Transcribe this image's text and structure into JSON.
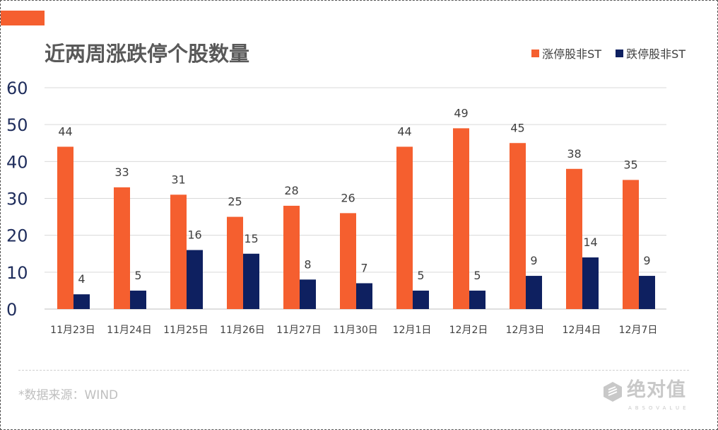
{
  "chart_data": {
    "type": "bar",
    "title": "近两周涨跌停个股数量",
    "categories": [
      "11月23日",
      "11月24日",
      "11月25日",
      "11月26日",
      "11月27日",
      "11月30日",
      "12月1日",
      "12月2日",
      "12月3日",
      "12月4日",
      "12月7日"
    ],
    "series": [
      {
        "name": "涨停股非ST",
        "color": "#F55F2F",
        "values": [
          44,
          33,
          31,
          25,
          28,
          26,
          44,
          49,
          45,
          38,
          35
        ]
      },
      {
        "name": "跌停股非ST",
        "color": "#0E2060",
        "values": [
          4,
          5,
          16,
          15,
          8,
          7,
          5,
          5,
          9,
          14,
          9
        ]
      }
    ],
    "yticks": [
      "0",
      "10",
      "20",
      "30",
      "40",
      "50",
      "60"
    ],
    "ylim": [
      0,
      60
    ],
    "grid": true,
    "legend": "top-right",
    "xlabel": "",
    "ylabel": ""
  },
  "footer": {
    "source": "*数据来源：WIND"
  },
  "logo": {
    "cn": "绝对值",
    "en": "ABSOVALUE"
  }
}
